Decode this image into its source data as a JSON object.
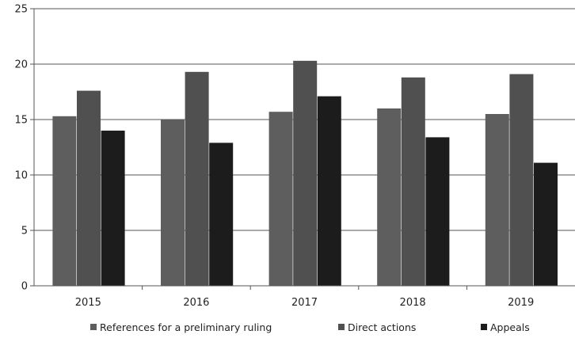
{
  "chart_data": {
    "type": "bar",
    "title": "",
    "xlabel": "",
    "ylabel": "",
    "categories": [
      "2015",
      "2016",
      "2017",
      "2018",
      "2019"
    ],
    "ylim": [
      0,
      25
    ],
    "yticks": [
      0,
      5,
      10,
      15,
      20,
      25
    ],
    "grid": "horizontal",
    "legend_position": "bottom",
    "series": [
      {
        "name": "References for a preliminary ruling",
        "color": "#5e5e5e",
        "values": [
          15.3,
          15.0,
          15.7,
          16.0,
          15.5
        ]
      },
      {
        "name": "Direct actions",
        "color": "#505050",
        "values": [
          17.6,
          19.3,
          20.3,
          18.8,
          19.1
        ]
      },
      {
        "name": "Appeals",
        "color": "#1c1c1c",
        "values": [
          14.0,
          12.9,
          17.1,
          13.4,
          11.1
        ]
      }
    ]
  }
}
